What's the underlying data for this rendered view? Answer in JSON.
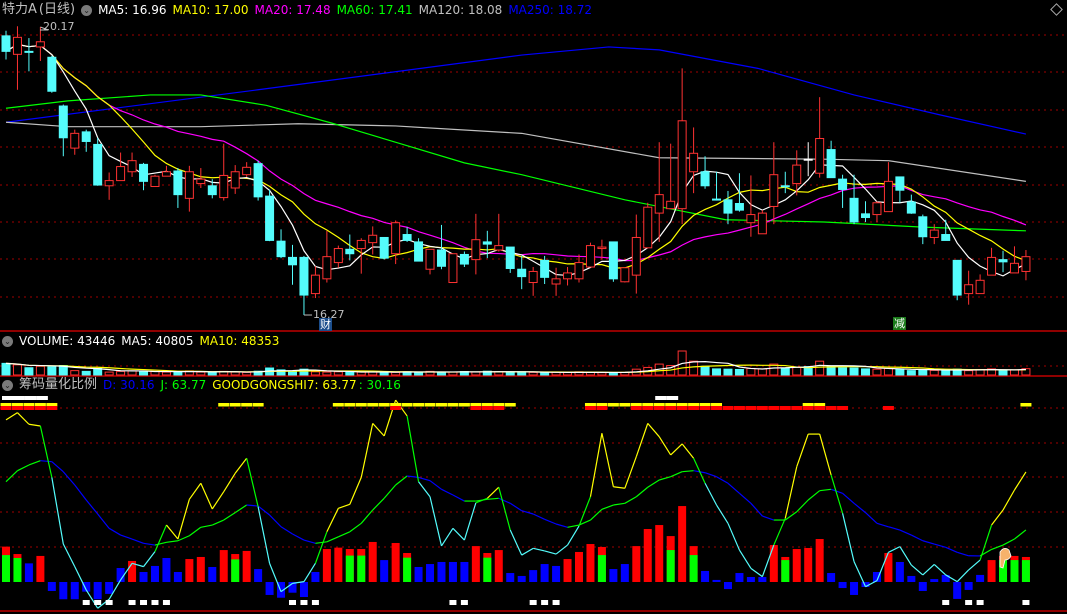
{
  "header": {
    "stock_name": "特力A",
    "period": "(日线)",
    "ma_labels": [
      {
        "text": "MA5: 16.96",
        "color": "#ffffff"
      },
      {
        "text": "MA10: 17.00",
        "color": "#ffff00"
      },
      {
        "text": "MA20: 17.48",
        "color": "#ff00ff"
      },
      {
        "text": "MA60: 17.41",
        "color": "#00ff00"
      },
      {
        "text": "MA120: 18.08",
        "color": "#c0c0c0"
      },
      {
        "text": "MA250: 18.72",
        "color": "#0000ff"
      }
    ]
  },
  "volume_header": {
    "volume": "VOLUME: 43446",
    "ma5": "MA5: 40805",
    "ma10": "MA10: 48353"
  },
  "indicator_header": {
    "name": "筹码量化比例",
    "d": "D: 30.16",
    "j": "J: 63.77",
    "goodgongshi": "GOODGONGSHI7: 63.77",
    "extra": ": 30.16"
  },
  "annotations": {
    "high_label": "20.17",
    "low_label": "16.27",
    "marker_cai": "财",
    "marker_jian": "减"
  },
  "colors": {
    "up": "#ff3232",
    "down": "#54fcfc",
    "ma5": "#ffffff",
    "ma10": "#ffff00",
    "ma20": "#ff00ff",
    "ma60": "#00ff00",
    "ma120": "#c0c0c0",
    "ma250": "#0000ff",
    "grid": "#a00000"
  },
  "candles": [
    [
      20.05,
      19.84,
      20.12,
      19.73
    ],
    [
      19.8,
      20.03,
      20.18,
      19.32
    ],
    [
      19.84,
      19.84,
      20.02,
      19.57
    ],
    [
      19.9,
      19.97,
      20.17,
      19.71
    ],
    [
      19.76,
      19.3,
      19.78,
      19.28
    ],
    [
      19.1,
      18.67,
      19.12,
      18.42
    ],
    [
      18.53,
      18.73,
      18.78,
      18.44
    ],
    [
      18.75,
      18.62,
      18.78,
      18.48
    ],
    [
      18.58,
      18.03,
      18.67,
      18.02
    ],
    [
      18.02,
      18.09,
      18.2,
      17.83
    ],
    [
      18.09,
      18.28,
      18.47,
      18.09
    ],
    [
      18.21,
      18.36,
      18.47,
      18.14
    ],
    [
      18.31,
      18.08,
      18.33,
      17.96
    ],
    [
      18.01,
      18.15,
      18.17,
      18.01
    ],
    [
      18.15,
      18.21,
      18.29,
      18.15
    ],
    [
      18.22,
      17.9,
      18.26,
      17.72
    ],
    [
      17.85,
      18.21,
      18.29,
      17.67
    ],
    [
      18.05,
      18.11,
      18.26,
      17.99
    ],
    [
      18.02,
      17.9,
      18.11,
      17.85
    ],
    [
      17.86,
      18.16,
      18.59,
      17.82
    ],
    [
      17.99,
      18.21,
      18.3,
      17.91
    ],
    [
      18.17,
      18.27,
      18.34,
      18.14
    ],
    [
      18.32,
      17.87,
      18.36,
      17.82
    ],
    [
      17.88,
      17.28,
      17.97,
      17.27
    ],
    [
      17.27,
      17.06,
      17.43,
      17.04
    ],
    [
      17.05,
      16.95,
      17.22,
      16.68
    ],
    [
      17.05,
      16.54,
      17.07,
      16.27
    ],
    [
      16.56,
      16.81,
      16.93,
      16.5
    ],
    [
      16.76,
      17.06,
      17.41,
      16.71
    ],
    [
      16.98,
      17.17,
      17.21,
      16.91
    ],
    [
      17.16,
      17.1,
      17.36,
      17.01
    ],
    [
      17.17,
      17.28,
      17.31,
      16.83
    ],
    [
      17.25,
      17.35,
      17.47,
      17.09
    ],
    [
      17.32,
      17.04,
      17.32,
      17.02
    ],
    [
      17.1,
      17.52,
      17.55,
      16.96
    ],
    [
      17.36,
      17.28,
      17.46,
      17.26
    ],
    [
      17.26,
      17.0,
      17.31,
      17.0
    ],
    [
      16.89,
      17.16,
      17.16,
      16.82
    ],
    [
      17.15,
      16.93,
      17.49,
      16.89
    ],
    [
      16.71,
      17.1,
      17.1,
      16.71
    ],
    [
      17.09,
      16.96,
      17.13,
      16.92
    ],
    [
      17.02,
      17.29,
      17.64,
      16.82
    ],
    [
      17.26,
      17.23,
      17.41,
      17.04
    ],
    [
      17.15,
      17.21,
      17.64,
      17.13
    ],
    [
      17.19,
      16.9,
      17.19,
      16.84
    ],
    [
      16.89,
      16.79,
      17.07,
      16.62
    ],
    [
      16.71,
      16.86,
      16.92,
      16.53
    ],
    [
      17.01,
      16.78,
      17.07,
      16.69
    ],
    [
      16.69,
      16.76,
      16.91,
      16.53
    ],
    [
      16.76,
      16.84,
      16.92,
      16.67
    ],
    [
      16.76,
      16.98,
      17.09,
      16.71
    ],
    [
      16.92,
      17.21,
      17.25,
      16.92
    ],
    [
      17.17,
      17.19,
      17.29,
      17.02
    ],
    [
      17.26,
      16.76,
      17.26,
      16.72
    ],
    [
      16.72,
      16.91,
      16.91,
      16.71
    ],
    [
      16.81,
      17.32,
      17.63,
      16.56
    ],
    [
      17.18,
      17.73,
      17.79,
      17.18
    ],
    [
      17.65,
      17.9,
      18.61,
      17.26
    ],
    [
      17.71,
      17.81,
      18.59,
      17.71
    ],
    [
      17.71,
      18.9,
      19.61,
      17.5
    ],
    [
      18.21,
      18.46,
      18.81,
      17.92
    ],
    [
      18.21,
      18.02,
      18.42,
      17.98
    ],
    [
      17.84,
      17.83,
      18.21,
      17.82
    ],
    [
      17.83,
      17.65,
      17.95,
      17.5
    ],
    [
      17.78,
      17.69,
      18.19,
      17.67
    ],
    [
      17.52,
      17.63,
      18.16,
      17.33
    ],
    [
      17.37,
      17.65,
      17.69,
      17.37
    ],
    [
      17.74,
      18.17,
      18.61,
      17.5
    ],
    [
      18.02,
      18.01,
      18.21,
      17.92
    ],
    [
      18.05,
      18.3,
      18.5,
      17.89
    ],
    [
      18.38,
      18.38,
      18.61,
      18.15
    ],
    [
      18.19,
      18.66,
      19.22,
      18.13
    ],
    [
      18.51,
      18.13,
      18.63,
      18.13
    ],
    [
      18.11,
      17.97,
      18.17,
      17.72
    ],
    [
      17.85,
      17.53,
      18.17,
      17.5
    ],
    [
      17.64,
      17.59,
      17.81,
      17.53
    ],
    [
      17.63,
      17.79,
      17.81,
      17.53
    ],
    [
      17.67,
      18.08,
      18.34,
      17.67
    ],
    [
      18.14,
      17.96,
      18.14,
      17.79
    ],
    [
      17.8,
      17.65,
      17.9,
      17.64
    ],
    [
      17.6,
      17.33,
      17.63,
      17.23
    ],
    [
      17.32,
      17.42,
      17.5,
      17.23
    ],
    [
      17.36,
      17.28,
      17.56,
      17.28
    ],
    [
      17.01,
      16.54,
      17.01,
      16.47
    ],
    [
      16.56,
      16.68,
      16.87,
      16.41
    ],
    [
      16.56,
      16.74,
      16.82,
      16.56
    ],
    [
      16.81,
      17.05,
      17.18,
      16.81
    ],
    [
      17.02,
      16.99,
      17.14,
      16.85
    ],
    [
      16.84,
      16.97,
      17.2,
      16.84
    ],
    [
      16.86,
      17.06,
      17.15,
      16.74
    ]
  ],
  "ma_long": {
    "ma60": [
      [
        0,
        19.07
      ],
      [
        5.4,
        19.17
      ],
      [
        12.6,
        19.25
      ],
      [
        17,
        19.25
      ],
      [
        22.7,
        19.11
      ],
      [
        28.4,
        18.87
      ],
      [
        34.2,
        18.6
      ],
      [
        40,
        18.33
      ],
      [
        45,
        18.17
      ],
      [
        54,
        17.83
      ],
      [
        62.8,
        17.56
      ],
      [
        71.4,
        17.53
      ],
      [
        80,
        17.46
      ],
      [
        89,
        17.41
      ]
    ],
    "ma120": [
      [
        0,
        18.88
      ],
      [
        5.4,
        18.82
      ],
      [
        17,
        18.82
      ],
      [
        25.5,
        18.86
      ],
      [
        34,
        18.83
      ],
      [
        45,
        18.73
      ],
      [
        57,
        18.4
      ],
      [
        71.4,
        18.38
      ],
      [
        77,
        18.36
      ],
      [
        89,
        18.08
      ]
    ],
    "ma250": [
      [
        0,
        18.88
      ],
      [
        22,
        19.32
      ],
      [
        45,
        19.79
      ],
      [
        52.6,
        19.9
      ],
      [
        57,
        19.86
      ],
      [
        65.6,
        19.61
      ],
      [
        74,
        19.25
      ],
      [
        81.5,
        18.98
      ],
      [
        89,
        18.72
      ]
    ]
  },
  "volume": [
    80000,
    70000,
    50000,
    60000,
    55000,
    65000,
    30000,
    25000,
    45000,
    20000,
    25000,
    28000,
    22000,
    25000,
    20000,
    22000,
    28000,
    20000,
    18000,
    25000,
    20000,
    18000,
    26000,
    48000,
    35000,
    25000,
    40000,
    22000,
    20000,
    22000,
    18000,
    20000,
    22000,
    20000,
    18000,
    22000,
    20000,
    25000,
    18000,
    20000,
    24000,
    20000,
    26000,
    22000,
    20000,
    22000,
    18000,
    15000,
    18000,
    17000,
    22000,
    18000,
    16000,
    15000,
    18000,
    40000,
    52000,
    75000,
    65000,
    165000,
    95000,
    60000,
    42000,
    40000,
    38000,
    45000,
    42000,
    75000,
    48000,
    55000,
    58000,
    95000,
    62000,
    50000,
    48000,
    42000,
    40000,
    45000,
    38000,
    30000,
    35000,
    32000,
    35000,
    40000,
    30000,
    38000,
    42000,
    30000,
    35000,
    43446
  ],
  "indicator": {
    "j": [
      93.9,
      98.1,
      91.4,
      90.4,
      60.6,
      22.0,
      8.9,
      -4.6,
      -15.2,
      -10.0,
      1.2,
      10.8,
      8.9,
      17.6,
      33.0,
      24.9,
      47.9,
      57.2,
      42.3,
      52.3,
      63.0,
      71.7,
      43.6,
      10.8,
      -5.6,
      -0.8,
      0.2,
      10.8,
      29.1,
      42.7,
      45.0,
      60.6,
      91.9,
      84.6,
      105.4,
      96.2,
      58.1,
      49.4,
      20.9,
      31.1,
      24.3,
      45.9,
      48.5,
      54.9,
      30.1,
      15.6,
      19.5,
      18.0,
      16.2,
      21.4,
      32.4,
      49.4,
      86.2,
      55.2,
      54.3,
      72.6,
      91.9,
      84.2,
      73.6,
      80.0,
      71.7,
      57.2,
      44.6,
      34.0,
      18.5,
      7.9,
      3.1,
      21.4,
      36.9,
      66.8,
      85.7,
      85.7,
      62.0,
      39.8,
      11.8,
      -2.7,
      0.8,
      17.2,
      20.5,
      9.8,
      4.1,
      10.2,
      4.1,
      0.2,
      7.0,
      12.7,
      33.0,
      41.7,
      53.3,
      63.77
    ],
    "d": [
      58.1,
      64.5,
      67.8,
      70.3,
      69.7,
      63.9,
      56.2,
      47.5,
      39.4,
      31.1,
      27.2,
      24.9,
      22.4,
      21.4,
      23.0,
      23.9,
      26.8,
      31.7,
      33.0,
      35.9,
      40.2,
      44.6,
      44.0,
      38.8,
      32.0,
      27.8,
      24.3,
      22.4,
      23.3,
      26.2,
      29.1,
      34.0,
      41.7,
      48.5,
      56.2,
      61.4,
      60.6,
      58.7,
      53.7,
      50.4,
      46.9,
      46.9,
      47.9,
      48.5,
      45.6,
      41.3,
      39.4,
      36.3,
      33.6,
      31.7,
      33.0,
      35.9,
      42.1,
      44.6,
      45.6,
      49.4,
      54.9,
      59.1,
      61.0,
      63.9,
      64.5,
      63.3,
      61.0,
      57.2,
      51.4,
      45.6,
      38.2,
      35.9,
      35.9,
      40.7,
      47.5,
      52.9,
      53.7,
      51.4,
      45.6,
      40.2,
      34.0,
      32.0,
      30.1,
      27.2,
      23.9,
      22.0,
      20.1,
      17.2,
      15.2,
      15.1,
      18.9,
      21.4,
      24.9,
      30.16
    ],
    "bars": [
      [
        20.5,
        "r",
        15.6
      ],
      [
        16.2,
        "r",
        13.9
      ],
      [
        10.8,
        "b"
      ],
      [
        15.1,
        "r"
      ],
      [
        -5.2,
        "b"
      ],
      [
        -10,
        "b"
      ],
      [
        -10,
        "b"
      ],
      [
        -5.6,
        "b"
      ],
      [
        -10,
        "b"
      ],
      [
        -6.9,
        "b"
      ],
      [
        8.1,
        "b"
      ],
      [
        12.2,
        "r"
      ],
      [
        5.8,
        "b"
      ],
      [
        9.3,
        "b"
      ],
      [
        13.9,
        "b"
      ],
      [
        5.8,
        "b"
      ],
      [
        13.3,
        "r"
      ],
      [
        14.5,
        "r"
      ],
      [
        8.7,
        "b"
      ],
      [
        18.5,
        "r"
      ],
      [
        16.2,
        "r",
        13.1
      ],
      [
        18.0,
        "r"
      ],
      [
        7.5,
        "b"
      ],
      [
        -7.5,
        "b"
      ],
      [
        -9.1,
        "b"
      ],
      [
        -6.2,
        "b"
      ],
      [
        -8.7,
        "b"
      ],
      [
        5.8,
        "b"
      ],
      [
        19.1,
        "r"
      ],
      [
        19.9,
        "r"
      ],
      [
        19.1,
        "r",
        15.3
      ],
      [
        19.1,
        "r",
        15.3
      ],
      [
        23.2,
        "r"
      ],
      [
        12.7,
        "b"
      ],
      [
        22.6,
        "r"
      ],
      [
        16.8,
        "r",
        14.1
      ],
      [
        8.7,
        "b"
      ],
      [
        10.4,
        "b"
      ],
      [
        11.6,
        "b"
      ],
      [
        11.6,
        "b"
      ],
      [
        11.6,
        "b"
      ],
      [
        20.8,
        "r"
      ],
      [
        16.8,
        "r",
        14.1
      ],
      [
        18.5,
        "r"
      ],
      [
        5.2,
        "b"
      ],
      [
        3.5,
        "b"
      ],
      [
        6.9,
        "b"
      ],
      [
        10.4,
        "b"
      ],
      [
        9.3,
        "b"
      ],
      [
        13.3,
        "r"
      ],
      [
        17.4,
        "r"
      ],
      [
        22.0,
        "r"
      ],
      [
        20.3,
        "r",
        15.6
      ],
      [
        7.5,
        "b"
      ],
      [
        10.4,
        "b"
      ],
      [
        20.8,
        "r"
      ],
      [
        30.7,
        "r"
      ],
      [
        33.0,
        "r"
      ],
      [
        26.6,
        "r",
        18.5
      ],
      [
        44.0,
        "r"
      ],
      [
        20.8,
        "r",
        15.6
      ],
      [
        6.4,
        "b"
      ],
      [
        1.2,
        "b"
      ],
      [
        -4.1,
        "b"
      ],
      [
        5.2,
        "b"
      ],
      [
        2.9,
        "b"
      ],
      [
        2.9,
        "b"
      ],
      [
        21.4,
        "r"
      ],
      [
        14.5,
        "r",
        12.7
      ],
      [
        19.1,
        "r"
      ],
      [
        19.7,
        "r"
      ],
      [
        24.9,
        "r"
      ],
      [
        5.2,
        "b"
      ],
      [
        -3.5,
        "b"
      ],
      [
        -7.5,
        "b"
      ],
      [
        -2.9,
        "b"
      ],
      [
        5.8,
        "b"
      ],
      [
        16.8,
        "r"
      ],
      [
        11.6,
        "b"
      ],
      [
        3.5,
        "b"
      ],
      [
        -5.2,
        "b"
      ],
      [
        1.7,
        "b"
      ],
      [
        4.1,
        "b"
      ],
      [
        -9.8,
        "b"
      ],
      [
        -4.6,
        "b"
      ],
      [
        4.1,
        "b"
      ],
      [
        12.7,
        "r"
      ],
      [
        15.1,
        "r",
        12.7
      ],
      [
        15.1,
        "r",
        12.7
      ],
      [
        14.5,
        "r",
        12.7
      ]
    ],
    "white_signals": [
      7,
      8,
      9,
      11,
      12,
      13,
      14,
      25,
      26,
      27,
      39,
      40,
      46,
      47,
      48,
      82,
      84,
      85,
      89
    ],
    "top_yellow": [
      0,
      1,
      2,
      3,
      4,
      19,
      20,
      21,
      22,
      29,
      30,
      31,
      32,
      33,
      34,
      35,
      36,
      37,
      38,
      39,
      40,
      41,
      42,
      43,
      44,
      51,
      52,
      53,
      54,
      55,
      56,
      57,
      58,
      59,
      60,
      61,
      62,
      70,
      71,
      89
    ],
    "top_red": [
      0,
      1,
      2,
      3,
      4,
      34,
      41,
      42,
      43,
      51,
      52,
      55,
      56,
      57,
      58,
      59,
      60,
      61,
      62,
      63,
      64,
      65,
      66,
      67,
      68,
      69,
      70,
      71,
      72,
      73,
      77
    ],
    "top_white": [
      0,
      1,
      2,
      3,
      57,
      58
    ]
  }
}
